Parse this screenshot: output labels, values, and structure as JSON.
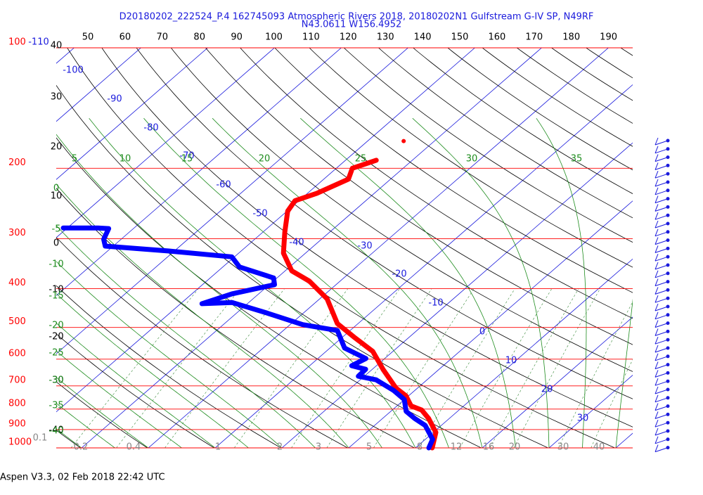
{
  "chart_data": {
    "type": "skewt",
    "title": "D20180202_222524_P.4 162745093 Atmospheric Rivers 2018, 20180202N1 Gulfstream G-IV SP, N49RF",
    "subtitle": "N43.0611 W156.4952",
    "footer": "Aspen V3.3, 02 Feb 2018  22:42 UTC",
    "plim": [
      1000,
      100
    ],
    "pressure_levels": [
      100,
      200,
      300,
      400,
      500,
      600,
      700,
      800,
      900,
      1000
    ],
    "pressure_color": "#ff0000",
    "top_labels": [
      50,
      60,
      70,
      80,
      90,
      100,
      110,
      120,
      130,
      140,
      150,
      160,
      170,
      180,
      190
    ],
    "left_labels": [
      40,
      30,
      20,
      10,
      0,
      -10,
      -20,
      -30,
      -40
    ],
    "isotherm_labels": [
      -110,
      -100,
      -90,
      -80,
      -70,
      -60,
      -50,
      -40,
      -30,
      -20,
      -10,
      0,
      10,
      20,
      30
    ],
    "isotherm_color": "#1a1adc",
    "green_top_labels": [
      5,
      10,
      15,
      20,
      25,
      30,
      35
    ],
    "green_left_labels": [
      0,
      -5,
      -10,
      -15,
      -20,
      -25,
      -30,
      -35,
      -40
    ],
    "green_color": "#1e8c1e",
    "mixing_ratio_labels": [
      0.1,
      0.2,
      0.4,
      1,
      2,
      3,
      5,
      8,
      12,
      16,
      20,
      30,
      40
    ],
    "series": [
      {
        "color": "#ff0000",
        "style": "line",
        "pressure": [
          1000,
          915,
          844,
          804,
          785,
          741,
          709,
          636,
          574,
          530,
          489,
          424,
          383,
          361,
          326,
          289,
          256,
          241,
          231,
          213,
          200,
          191
        ],
        "temperature": [
          12.5,
          10.4,
          6.9,
          4.4,
          2.1,
          -0.4,
          -3.2,
          -8.4,
          -13.0,
          -18.1,
          -23.1,
          -28.9,
          -34.6,
          -39.0,
          -43.3,
          -46.7,
          -49.9,
          -50.6,
          -48.6,
          -46.3,
          -47.6,
          -45.4
        ]
      },
      {
        "color": "#0000ff",
        "style": "line",
        "pressure": [
          1000,
          952,
          879,
          844,
          810,
          757,
          718,
          676,
          662,
          636,
          623,
          598,
          563,
          509,
          492,
          460,
          433,
          436,
          412,
          391,
          376,
          353,
          333,
          322,
          313,
          301,
          283,
          282,
          282
        ],
        "temperature": [
          12.0,
          11.1,
          7.6,
          4.8,
          2.3,
          0.0,
          -3.2,
          -7.6,
          -10.9,
          -11.0,
          -13.7,
          -12.8,
          -17.8,
          -21.9,
          -28.1,
          -35.5,
          -42.5,
          -46.8,
          -44.0,
          -39.2,
          -40.5,
          -47.5,
          -50.4,
          -60.8,
          -71.2,
          -72.6,
          -73.7,
          -75.4,
          -80.6
        ]
      },
      {
        "color": "#ff0000",
        "style": "dot",
        "pressure": [
          171
        ],
        "temperature": [
          -44.6
        ]
      }
    ]
  }
}
